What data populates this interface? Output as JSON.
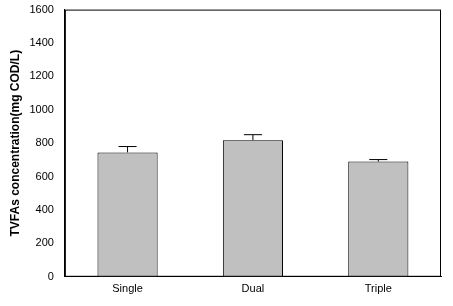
{
  "chart_data": {
    "type": "bar",
    "y_label": "TVFAs concentration(mg COD/L)",
    "categories": [
      "Single",
      "Dual",
      "Triple"
    ],
    "values": [
      745,
      818,
      690
    ],
    "errors": [
      35,
      33,
      12
    ],
    "color": "#c0c0c0",
    "ylim": [
      0,
      1600
    ],
    "yticks": [
      0,
      200,
      400,
      600,
      800,
      1000,
      1200,
      1400,
      1600
    ],
    "grid": false
  }
}
